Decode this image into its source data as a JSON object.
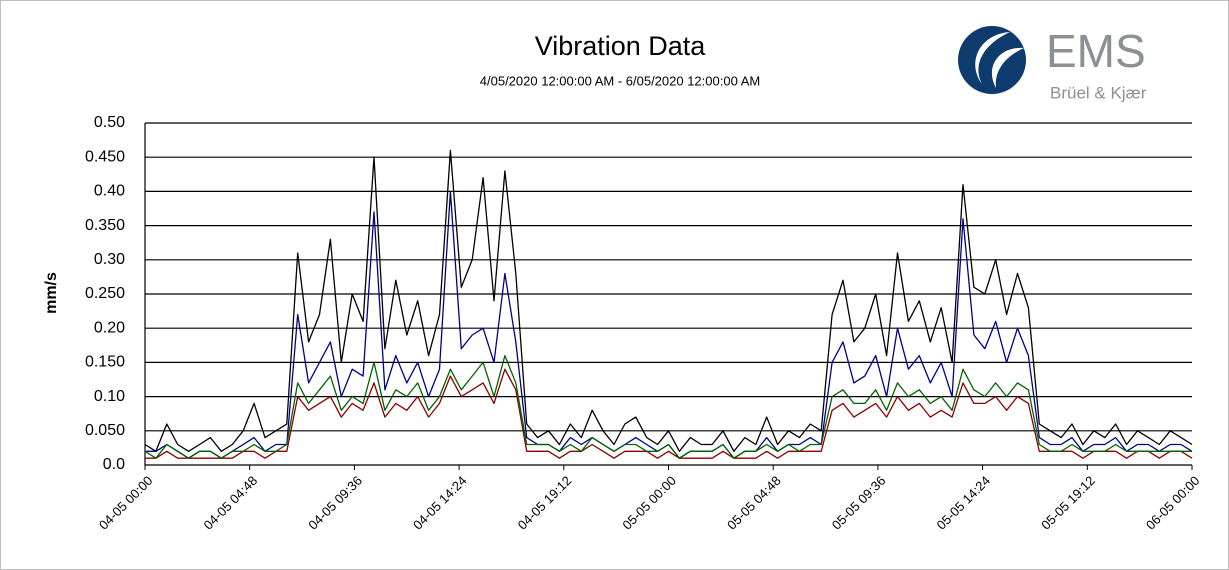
{
  "chart_data": {
    "type": "line",
    "title": "Vibration Data",
    "subtitle": "4/05/2020 12:00:00 AM - 6/05/2020 12:00:00 AM",
    "y_label": "mm/s",
    "grid": true,
    "xlim": [
      "04-05 00:00",
      "06-05 00:00"
    ],
    "xticks": [
      "04-05 00:00",
      "04-05 04:48",
      "04-05 09:36",
      "04-05 14:24",
      "04-05 19:12",
      "05-05 00:00",
      "05-05 04:48",
      "05-05 09:36",
      "05-05 14:24",
      "05-05 19:12",
      "06-05 00:00"
    ],
    "ylim": [
      0,
      0.5
    ],
    "yticks": [
      {
        "value": 0,
        "label": "0.0"
      },
      {
        "value": 0.05,
        "label": "0.050"
      },
      {
        "value": 0.1,
        "label": "0.10"
      },
      {
        "value": 0.15,
        "label": "0.150"
      },
      {
        "value": 0.2,
        "label": "0.20"
      },
      {
        "value": 0.25,
        "label": "0.250"
      },
      {
        "value": 0.3,
        "label": "0.30"
      },
      {
        "value": 0.35,
        "label": "0.350"
      },
      {
        "value": 0.4,
        "label": "0.40"
      },
      {
        "value": 0.45,
        "label": "0.450"
      },
      {
        "value": 0.5,
        "label": "0.50"
      }
    ],
    "x": [
      "04-05 00:00",
      "04-05 00:30",
      "04-05 01:00",
      "04-05 01:30",
      "04-05 02:00",
      "04-05 02:30",
      "04-05 03:00",
      "04-05 03:30",
      "04-05 04:00",
      "04-05 04:30",
      "04-05 05:00",
      "04-05 05:30",
      "04-05 06:00",
      "04-05 06:30",
      "04-05 07:00",
      "04-05 07:30",
      "04-05 08:00",
      "04-05 08:30",
      "04-05 09:00",
      "04-05 09:30",
      "04-05 10:00",
      "04-05 10:30",
      "04-05 11:00",
      "04-05 11:30",
      "04-05 12:00",
      "04-05 12:30",
      "04-05 13:00",
      "04-05 13:30",
      "04-05 14:00",
      "04-05 14:30",
      "04-05 15:00",
      "04-05 15:30",
      "04-05 16:00",
      "04-05 16:30",
      "04-05 17:00",
      "04-05 17:30",
      "04-05 18:00",
      "04-05 18:30",
      "04-05 19:00",
      "04-05 19:30",
      "04-05 20:00",
      "04-05 20:30",
      "04-05 21:00",
      "04-05 21:30",
      "04-05 22:00",
      "04-05 22:30",
      "04-05 23:00",
      "04-05 23:30",
      "05-05 00:00",
      "05-05 00:30",
      "05-05 01:00",
      "05-05 01:30",
      "05-05 02:00",
      "05-05 02:30",
      "05-05 03:00",
      "05-05 03:30",
      "05-05 04:00",
      "05-05 04:30",
      "05-05 05:00",
      "05-05 05:30",
      "05-05 06:00",
      "05-05 06:30",
      "05-05 07:00",
      "05-05 07:30",
      "05-05 08:00",
      "05-05 08:30",
      "05-05 09:00",
      "05-05 09:30",
      "05-05 10:00",
      "05-05 10:30",
      "05-05 11:00",
      "05-05 11:30",
      "05-05 12:00",
      "05-05 12:30",
      "05-05 13:00",
      "05-05 13:30",
      "05-05 14:00",
      "05-05 14:30",
      "05-05 15:00",
      "05-05 15:30",
      "05-05 16:00",
      "05-05 16:30",
      "05-05 17:00",
      "05-05 17:30",
      "05-05 18:00",
      "05-05 18:30",
      "05-05 19:00",
      "05-05 19:30",
      "05-05 20:00",
      "05-05 20:30",
      "05-05 21:00",
      "05-05 21:30",
      "05-05 22:00",
      "05-05 22:30",
      "05-05 23:00",
      "05-05 23:30",
      "06-05 00:00"
    ],
    "series": [
      {
        "color": "#000000",
        "values": [
          0.03,
          0.02,
          0.06,
          0.03,
          0.02,
          0.03,
          0.04,
          0.02,
          0.03,
          0.05,
          0.09,
          0.04,
          0.05,
          0.06,
          0.31,
          0.18,
          0.22,
          0.33,
          0.15,
          0.25,
          0.21,
          0.45,
          0.17,
          0.27,
          0.19,
          0.24,
          0.16,
          0.22,
          0.46,
          0.26,
          0.3,
          0.42,
          0.24,
          0.43,
          0.28,
          0.06,
          0.04,
          0.05,
          0.03,
          0.06,
          0.04,
          0.08,
          0.05,
          0.03,
          0.06,
          0.07,
          0.04,
          0.03,
          0.05,
          0.02,
          0.04,
          0.03,
          0.03,
          0.05,
          0.02,
          0.04,
          0.03,
          0.07,
          0.03,
          0.05,
          0.04,
          0.06,
          0.05,
          0.22,
          0.27,
          0.18,
          0.2,
          0.25,
          0.16,
          0.31,
          0.21,
          0.24,
          0.18,
          0.23,
          0.15,
          0.41,
          0.26,
          0.25,
          0.3,
          0.22,
          0.28,
          0.23,
          0.06,
          0.05,
          0.04,
          0.06,
          0.03,
          0.05,
          0.04,
          0.06,
          0.03,
          0.05,
          0.04,
          0.03,
          0.05,
          0.04,
          0.03
        ]
      },
      {
        "color": "#00008b",
        "values": [
          0.02,
          0.02,
          0.03,
          0.02,
          0.01,
          0.02,
          0.02,
          0.01,
          0.02,
          0.03,
          0.04,
          0.02,
          0.03,
          0.03,
          0.22,
          0.12,
          0.15,
          0.18,
          0.1,
          0.14,
          0.13,
          0.37,
          0.11,
          0.16,
          0.12,
          0.15,
          0.1,
          0.14,
          0.4,
          0.17,
          0.19,
          0.2,
          0.15,
          0.28,
          0.18,
          0.04,
          0.03,
          0.03,
          0.02,
          0.04,
          0.03,
          0.04,
          0.03,
          0.02,
          0.03,
          0.04,
          0.03,
          0.02,
          0.03,
          0.01,
          0.02,
          0.02,
          0.02,
          0.03,
          0.01,
          0.02,
          0.02,
          0.04,
          0.02,
          0.03,
          0.03,
          0.04,
          0.03,
          0.15,
          0.18,
          0.12,
          0.13,
          0.16,
          0.1,
          0.2,
          0.14,
          0.16,
          0.12,
          0.15,
          0.1,
          0.36,
          0.19,
          0.17,
          0.21,
          0.15,
          0.2,
          0.16,
          0.04,
          0.03,
          0.03,
          0.04,
          0.02,
          0.03,
          0.03,
          0.04,
          0.02,
          0.03,
          0.03,
          0.02,
          0.03,
          0.03,
          0.02
        ]
      },
      {
        "color": "#8b0000",
        "values": [
          0.01,
          0.01,
          0.02,
          0.01,
          0.01,
          0.01,
          0.01,
          0.01,
          0.01,
          0.02,
          0.02,
          0.01,
          0.02,
          0.02,
          0.1,
          0.08,
          0.09,
          0.1,
          0.07,
          0.09,
          0.08,
          0.12,
          0.07,
          0.09,
          0.08,
          0.1,
          0.07,
          0.09,
          0.13,
          0.1,
          0.11,
          0.12,
          0.09,
          0.14,
          0.11,
          0.02,
          0.02,
          0.02,
          0.01,
          0.02,
          0.02,
          0.03,
          0.02,
          0.01,
          0.02,
          0.02,
          0.02,
          0.01,
          0.02,
          0.01,
          0.01,
          0.01,
          0.01,
          0.02,
          0.01,
          0.01,
          0.01,
          0.02,
          0.01,
          0.02,
          0.02,
          0.02,
          0.02,
          0.08,
          0.09,
          0.07,
          0.08,
          0.09,
          0.07,
          0.1,
          0.08,
          0.09,
          0.07,
          0.08,
          0.07,
          0.12,
          0.09,
          0.09,
          0.1,
          0.08,
          0.1,
          0.09,
          0.02,
          0.02,
          0.02,
          0.02,
          0.01,
          0.02,
          0.02,
          0.02,
          0.01,
          0.02,
          0.02,
          0.01,
          0.02,
          0.02,
          0.01
        ]
      },
      {
        "color": "#006400",
        "values": [
          0.02,
          0.01,
          0.03,
          0.02,
          0.01,
          0.02,
          0.02,
          0.01,
          0.02,
          0.02,
          0.03,
          0.02,
          0.02,
          0.03,
          0.12,
          0.09,
          0.11,
          0.13,
          0.08,
          0.1,
          0.09,
          0.15,
          0.08,
          0.11,
          0.1,
          0.12,
          0.08,
          0.1,
          0.14,
          0.11,
          0.13,
          0.15,
          0.1,
          0.16,
          0.12,
          0.03,
          0.03,
          0.03,
          0.02,
          0.03,
          0.02,
          0.04,
          0.03,
          0.02,
          0.03,
          0.03,
          0.02,
          0.02,
          0.03,
          0.01,
          0.02,
          0.02,
          0.02,
          0.03,
          0.01,
          0.02,
          0.02,
          0.03,
          0.02,
          0.03,
          0.02,
          0.03,
          0.03,
          0.1,
          0.11,
          0.09,
          0.09,
          0.11,
          0.08,
          0.12,
          0.1,
          0.11,
          0.09,
          0.1,
          0.08,
          0.14,
          0.11,
          0.1,
          0.12,
          0.1,
          0.12,
          0.11,
          0.03,
          0.02,
          0.02,
          0.03,
          0.02,
          0.02,
          0.02,
          0.03,
          0.02,
          0.02,
          0.02,
          0.02,
          0.02,
          0.02,
          0.02
        ]
      }
    ]
  },
  "logo": {
    "name": "EMS",
    "subtitle": "Brüel & Kjær"
  }
}
